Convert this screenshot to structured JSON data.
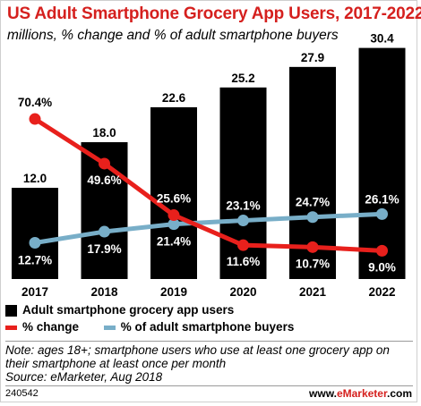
{
  "header": {
    "title": "US Adult Smartphone Grocery App Users, 2017-2022",
    "subtitle": "millions, % change and % of adult smartphone buyers"
  },
  "legend": {
    "bars": "Adult smartphone grocery app users",
    "change": "% change",
    "share": "% of adult  smartphone buyers"
  },
  "footer": {
    "note_line1": "Note: ages 18+; smartphone users who use at least one grocery app on",
    "note_line2": "their smartphone at least once per month",
    "source": "Source: eMarketer, Aug 2018",
    "chart_id": "240542",
    "brand_prefix": "www.",
    "brand_name": "eMarketer",
    "brand_suffix": ".com"
  },
  "colors": {
    "bars": "#000000",
    "change": "#e8201c",
    "share": "#78aec8",
    "title": "#d5201e"
  },
  "chart_data": {
    "type": "bar",
    "categories": [
      "2017",
      "2018",
      "2019",
      "2020",
      "2021",
      "2022"
    ],
    "series": [
      {
        "name": "Adult smartphone grocery app users",
        "kind": "bar",
        "values": [
          12.0,
          18.0,
          22.6,
          25.2,
          27.9,
          30.4
        ],
        "labels": [
          "12.0",
          "18.0",
          "22.6",
          "25.2",
          "27.9",
          "30.4"
        ]
      },
      {
        "name": "% change",
        "kind": "line",
        "values": [
          70.4,
          49.6,
          25.6,
          11.6,
          10.7,
          9.0
        ],
        "labels": [
          "70.4%",
          "49.6%",
          "25.6%",
          "11.6%",
          "10.7%",
          "9.0%"
        ]
      },
      {
        "name": "% of adult  smartphone buyers",
        "kind": "line",
        "values": [
          12.7,
          17.9,
          21.4,
          23.1,
          24.7,
          26.1
        ],
        "labels": [
          "12.7%",
          "17.9%",
          "21.4%",
          "23.1%",
          "24.7%",
          "26.1%"
        ]
      }
    ],
    "bar_axis_max": 34,
    "pct_axis_range": [
      0,
      80
    ],
    "legend_position": "bottom",
    "grid": false
  }
}
